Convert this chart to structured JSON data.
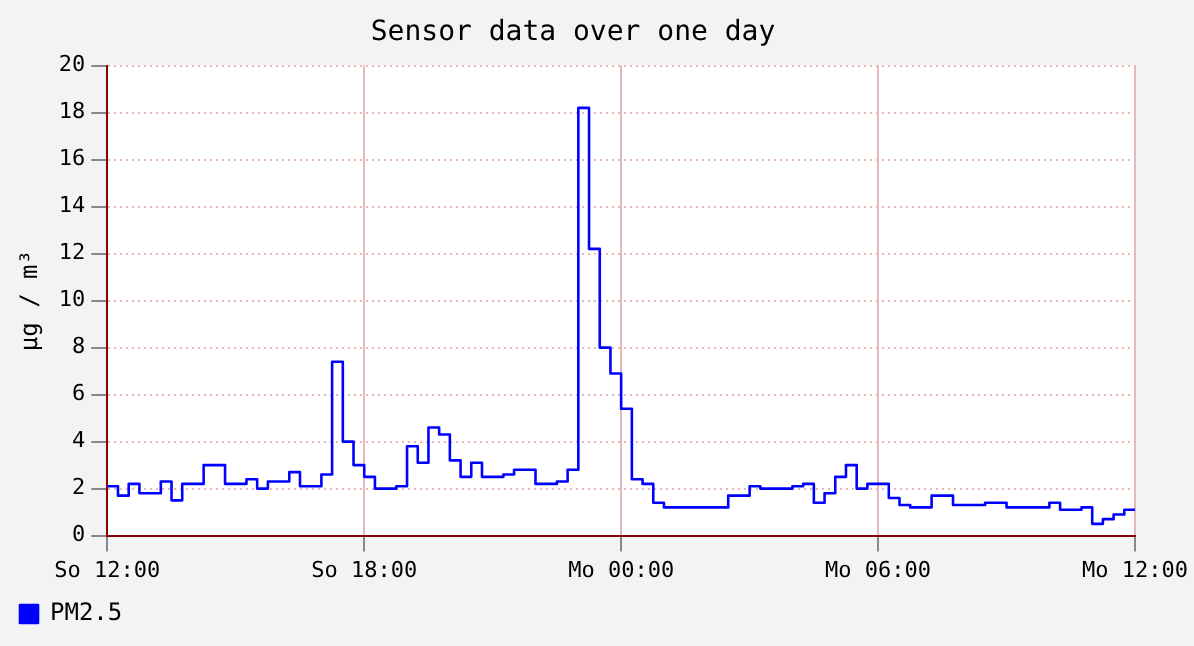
{
  "chart_data": {
    "type": "step",
    "title": "Sensor data over one day",
    "ylabel": "µg / m³",
    "categories": [
      "So 12:00",
      null,
      null,
      null,
      null,
      null,
      null,
      null,
      null,
      null,
      null,
      null,
      null,
      null,
      null,
      null,
      null,
      null,
      null,
      null,
      null,
      null,
      null,
      null,
      "So 18:00",
      null,
      null,
      null,
      null,
      null,
      null,
      null,
      null,
      null,
      null,
      null,
      null,
      null,
      null,
      null,
      null,
      null,
      null,
      null,
      null,
      null,
      null,
      null,
      "Mo 00:00",
      null,
      null,
      null,
      null,
      null,
      null,
      null,
      null,
      null,
      null,
      null,
      null,
      null,
      null,
      null,
      null,
      null,
      null,
      null,
      null,
      null,
      null,
      null,
      "Mo 06:00",
      null,
      null,
      null,
      null,
      null,
      null,
      null,
      null,
      null,
      null,
      null,
      null,
      null,
      null,
      null,
      null,
      null,
      null,
      null,
      null,
      null,
      null,
      null,
      "Mo 12:00"
    ],
    "ylim": [
      0,
      20
    ],
    "yticks": [
      0,
      2,
      4,
      6,
      8,
      10,
      12,
      14,
      16,
      18,
      20
    ],
    "grid": true,
    "legend": "bottom left",
    "marker": "none",
    "line_style": "solid",
    "series": [
      {
        "name": "PM2.5",
        "color": "#0000ff",
        "values": [
          2.1,
          2.1,
          1.7,
          2.2,
          1.8,
          1.8,
          2.3,
          1.5,
          2.2,
          2.2,
          3.0,
          3.0,
          2.2,
          2.2,
          2.4,
          2.0,
          2.3,
          2.3,
          2.7,
          2.1,
          2.1,
          2.6,
          7.4,
          4.0,
          3.0,
          2.5,
          2.0,
          2.0,
          2.1,
          3.8,
          3.1,
          4.6,
          4.3,
          3.2,
          2.5,
          3.1,
          2.5,
          2.5,
          2.6,
          2.8,
          2.8,
          2.2,
          2.2,
          2.3,
          2.8,
          18.2,
          12.2,
          8.0,
          6.9,
          5.4,
          2.4,
          2.2,
          1.4,
          1.2,
          1.2,
          1.2,
          1.2,
          1.2,
          1.2,
          1.7,
          1.7,
          2.1,
          2.0,
          2.0,
          2.0,
          2.1,
          2.2,
          1.4,
          1.8,
          2.5,
          3.0,
          2.0,
          2.2,
          2.2,
          1.6,
          1.3,
          1.2,
          1.2,
          1.7,
          1.7,
          1.3,
          1.3,
          1.3,
          1.4,
          1.4,
          1.2,
          1.2,
          1.2,
          1.2,
          1.4,
          1.1,
          1.1,
          1.2,
          0.5,
          0.7,
          0.9,
          1.1
        ]
      }
    ]
  }
}
